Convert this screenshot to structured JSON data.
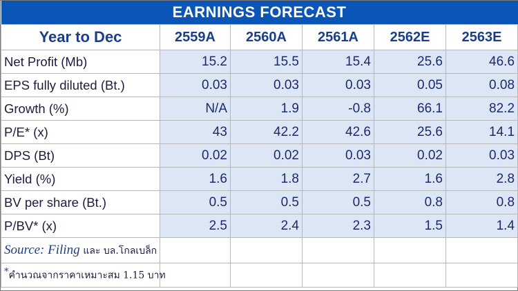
{
  "title": "EARNINGS FORECAST",
  "header": {
    "label": "Year to Dec",
    "years": [
      "2559A",
      "2560A",
      "2561A",
      "2562E",
      "2563E"
    ]
  },
  "rows": [
    {
      "label": "Net Profit (Mb)",
      "values": [
        "15.2",
        "15.5",
        "15.4",
        "25.6",
        "46.6"
      ]
    },
    {
      "label": "EPS fully diluted (Bt.)",
      "values": [
        "0.03",
        "0.03",
        "0.03",
        "0.05",
        "0.08"
      ]
    },
    {
      "label": "Growth (%)",
      "values": [
        "N/A",
        "1.9",
        "-0.8",
        "66.1",
        "82.2"
      ]
    },
    {
      "label": "P/E* (x)",
      "values": [
        "43",
        "42.2",
        "42.6",
        "25.6",
        "14.1"
      ]
    },
    {
      "label": "DPS (Bt)",
      "values": [
        "0.02",
        "0.02",
        "0.03",
        "0.02",
        "0.03"
      ]
    },
    {
      "label": "Yield (%)",
      "values": [
        "1.6",
        "1.8",
        "2.7",
        "1.6",
        "2.8"
      ]
    },
    {
      "label": "BV per share (Bt.)",
      "values": [
        "0.5",
        "0.5",
        "0.5",
        "0.8",
        "0.8"
      ]
    },
    {
      "label": "P/BV* (x)",
      "values": [
        "2.5",
        "2.4",
        "2.3",
        "1.5",
        "1.4"
      ]
    }
  ],
  "footer": {
    "source_prefix": "Source:",
    "source_name": "Filing",
    "source_suffix": "และ บล.โกลเบล็ก",
    "note_marker": "*",
    "note_text": "คำนวณจากราคาเหมาะสม 1.15 บาท"
  },
  "colors": {
    "banner": "#0b55b7",
    "header_text": "#1a3e88",
    "value_fill": "#dce6f4"
  }
}
